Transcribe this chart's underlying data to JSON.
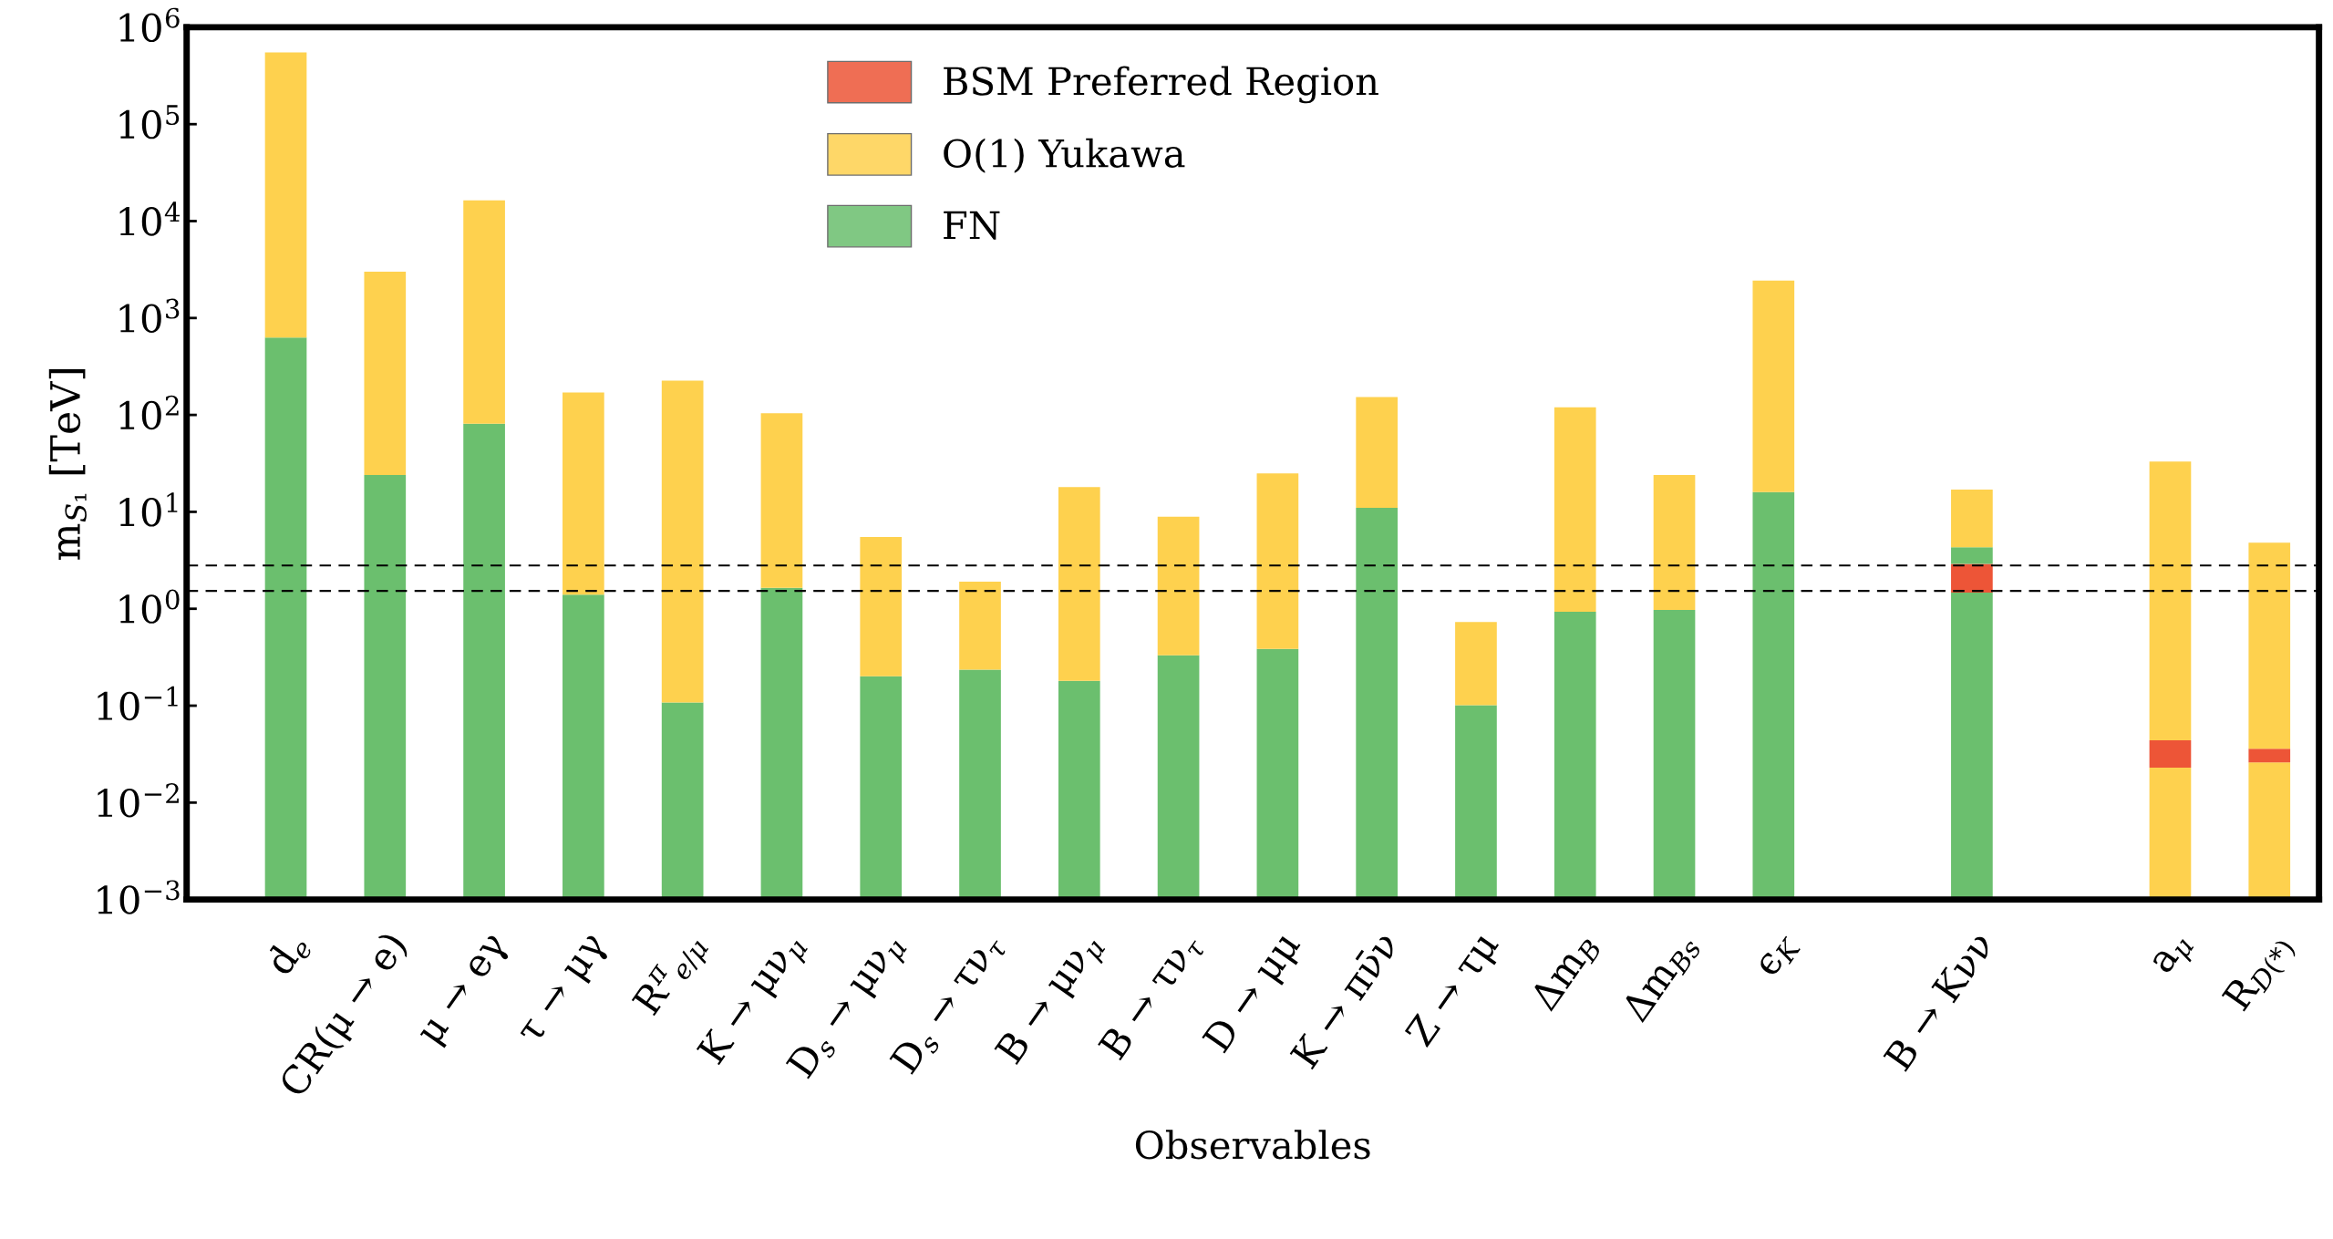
{
  "chart_data": {
    "type": "bar",
    "xlabel": "Observables",
    "ylabel": "m$_{S₁}$ [TeV]",
    "categories": [
      "d$_{e}$",
      "CR(μ → e)",
      "μ → eγ",
      "τ → μγ",
      "R$^{π}$$_{e/μ}$",
      "K → μν$_{μ}$",
      "D$_{s}$ → μν$_{μ}$",
      "D$_{s}$ → τν$_{τ}$",
      "B → μν$_{μ}$",
      "B → τν$_{τ}$",
      "D → μμ",
      "K → πν̄ν",
      "Z → τμ",
      "Δm$_{B}$",
      "Δm$_{Bs}$",
      "ϵ$_{K}$",
      null,
      "B → Kνν",
      null,
      "a$_{μ}$",
      "R$_{D(*)}$"
    ],
    "log": "y",
    "ylim": [
      0.001,
      1000000
    ],
    "yticks": [
      {
        "value": 0.001,
        "label": "10$^{−3}$"
      },
      {
        "value": 0.01,
        "label": "10$^{−2}$"
      },
      {
        "value": 0.1,
        "label": "10$^{−1}$"
      },
      {
        "value": 1,
        "label": "10$^{0}$"
      },
      {
        "value": 10,
        "label": "10$^{1}$"
      },
      {
        "value": 100,
        "label": "10$^{2}$"
      },
      {
        "value": 1000,
        "label": "10$^{3}$"
      },
      {
        "value": 10000,
        "label": "10$^{4}$"
      },
      {
        "value": 100000,
        "label": "10$^{5}$"
      },
      {
        "value": 1000000,
        "label": "10$^{6}$"
      }
    ],
    "grid": false,
    "legend": "top",
    "stacked": true,
    "ref_lines": [
      {
        "axis": "y",
        "value": 2.8,
        "line_style": "dashed",
        "color": "#000000"
      },
      {
        "axis": "y",
        "value": 1.53,
        "line_style": "dashed",
        "color": "#000000"
      }
    ],
    "series": [
      {
        "name": "FN",
        "color": "#6bbf6e",
        "values": [
          630,
          24,
          81,
          1.4,
          0.107,
          1.64,
          0.2,
          0.234,
          0.18,
          0.33,
          0.385,
          11,
          0.1,
          0.93,
          0.97,
          16,
          null,
          1.47,
          null,
          null,
          null
        ]
      },
      {
        "name": "O(1) Yukawa",
        "color": "#fed14e",
        "values": [
          null,
          null,
          null,
          null,
          null,
          null,
          null,
          null,
          null,
          null,
          null,
          null,
          null,
          null,
          null,
          null,
          null,
          null,
          null,
          0.022,
          0.025
        ]
      },
      {
        "name": "BSM Preferred Region",
        "color": "#ed5537",
        "values": [
          null,
          null,
          null,
          null,
          null,
          null,
          null,
          null,
          null,
          null,
          null,
          null,
          null,
          null,
          null,
          null,
          null,
          1.43,
          null,
          0.021,
          0.01
        ]
      },
      {
        "color": "#6bbf6e",
        "values": [
          null,
          null,
          null,
          null,
          null,
          null,
          null,
          null,
          null,
          null,
          null,
          null,
          null,
          null,
          null,
          null,
          null,
          1.4,
          null,
          null,
          null
        ]
      },
      {
        "color": "#fed14e",
        "values": [
          549400,
          2980,
          16300,
          168.6,
          225.9,
          102.4,
          5.3,
          1.67,
          17.8,
          8.57,
          24.6,
          142,
          0.63,
          119,
          23,
          2414,
          null,
          12.7,
          null,
          33,
          4.76
        ]
      }
    ]
  }
}
